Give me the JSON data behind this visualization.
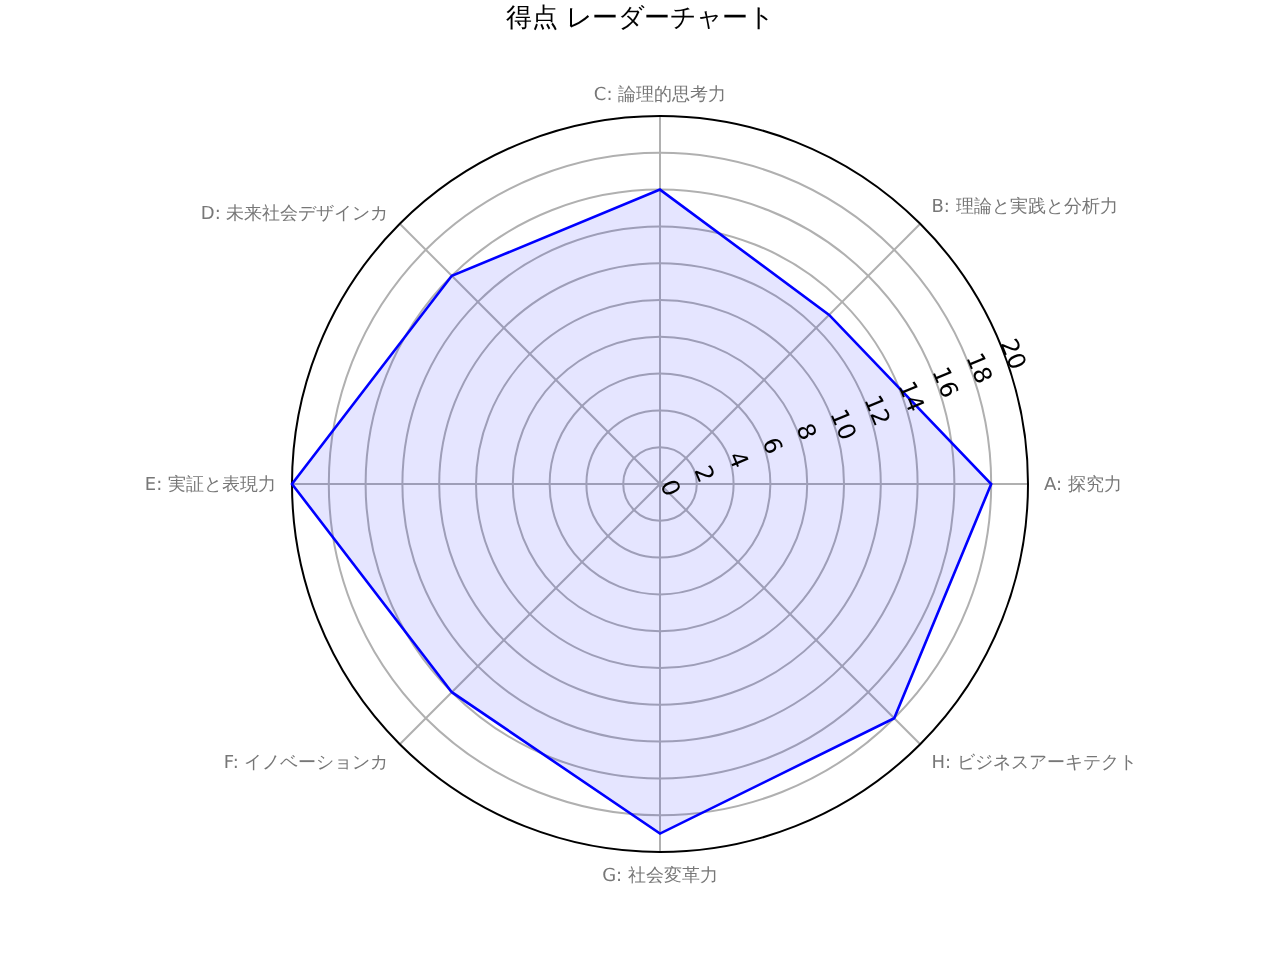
{
  "chart_data": {
    "type": "radar",
    "title": "得点 レーダーチャート",
    "categories": [
      "C: 論理的思考力",
      "B: 理論と実践と分析力",
      "A: 探究力",
      "H: ビジネスアーキテクト",
      "G: 社会変革力",
      "F: イノベーションカ",
      "E: 実証と表現力",
      "D: 未来社会デザインカ"
    ],
    "series": [
      {
        "color": "#0000ff",
        "values": [
          16,
          13,
          18,
          18,
          19,
          16,
          20,
          16
        ]
      }
    ],
    "ylim": [
      0,
      20
    ],
    "yticks": [
      0,
      2,
      4,
      6,
      8,
      10,
      12,
      14,
      16,
      18,
      20
    ],
    "grid": true,
    "marker": "none"
  }
}
